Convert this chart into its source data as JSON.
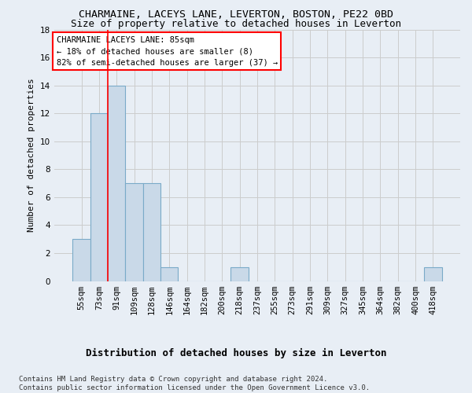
{
  "title": "CHARMAINE, LACEYS LANE, LEVERTON, BOSTON, PE22 0BD",
  "subtitle": "Size of property relative to detached houses in Leverton",
  "xlabel_bottom": "Distribution of detached houses by size in Leverton",
  "ylabel": "Number of detached properties",
  "footnote": "Contains HM Land Registry data © Crown copyright and database right 2024.\nContains public sector information licensed under the Open Government Licence v3.0.",
  "categories": [
    "55sqm",
    "73sqm",
    "91sqm",
    "109sqm",
    "128sqm",
    "146sqm",
    "164sqm",
    "182sqm",
    "200sqm",
    "218sqm",
    "237sqm",
    "255sqm",
    "273sqm",
    "291sqm",
    "309sqm",
    "327sqm",
    "345sqm",
    "364sqm",
    "382sqm",
    "400sqm",
    "418sqm"
  ],
  "values": [
    3,
    12,
    14,
    7,
    7,
    1,
    0,
    0,
    0,
    1,
    0,
    0,
    0,
    0,
    0,
    0,
    0,
    0,
    0,
    0,
    1
  ],
  "bar_color": "#c9d9e8",
  "bar_edgecolor": "#7aaac8",
  "bar_linewidth": 0.8,
  "grid_color": "#cccccc",
  "background_color": "#e8eef5",
  "red_line_x": 1.5,
  "annotation_box_text": "CHARMAINE LACEYS LANE: 85sqm\n← 18% of detached houses are smaller (8)\n82% of semi-detached houses are larger (37) →",
  "ylim": [
    0,
    18
  ],
  "yticks": [
    0,
    2,
    4,
    6,
    8,
    10,
    12,
    14,
    16,
    18
  ],
  "title_fontsize": 9.5,
  "subtitle_fontsize": 9,
  "ylabel_fontsize": 8,
  "tick_fontsize": 7.5,
  "annotation_fontsize": 7.5,
  "footnote_fontsize": 6.5,
  "xlabel_bottom_fontsize": 9
}
